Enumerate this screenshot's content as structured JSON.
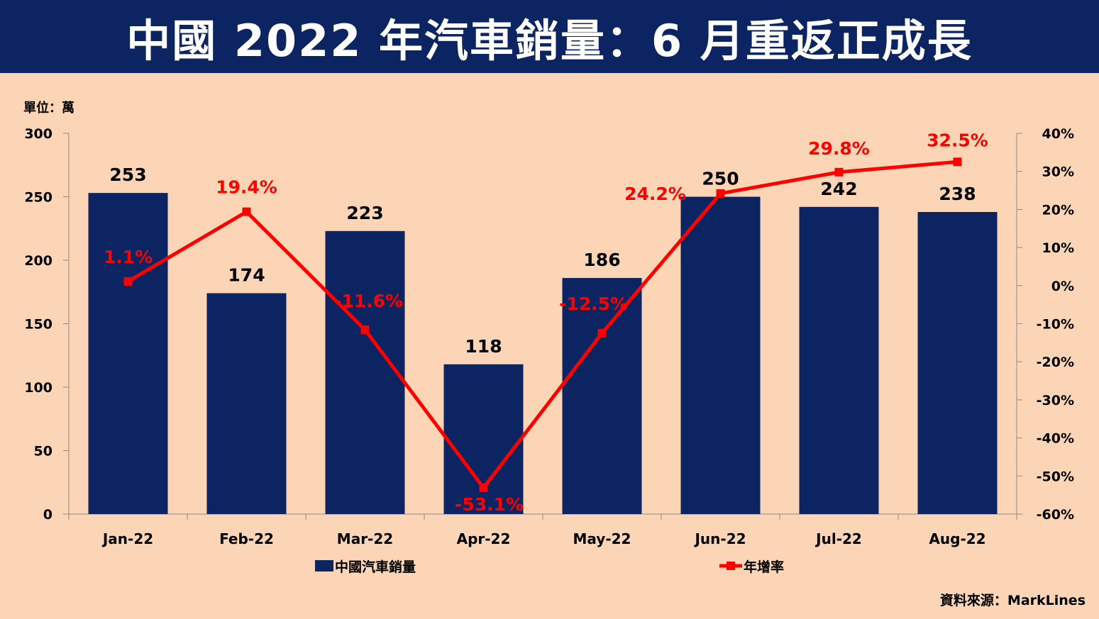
{
  "header": {
    "title": "中國 2022 年汽車銷量：6 月重返正成長"
  },
  "unit_label": "單位：萬",
  "source": "資料來源：MarkLines",
  "colors": {
    "header_bg": "#0c2461",
    "background": "#fbd5b5",
    "bar": "#0c2461",
    "line": "#ff0000"
  },
  "chart_data": {
    "type": "bar",
    "title": "中國 2022 年汽車銷量：6 月重返正成長",
    "categories": [
      "Jan-22",
      "Feb-22",
      "Mar-22",
      "Apr-22",
      "May-22",
      "Jun-22",
      "Jul-22",
      "Aug-22"
    ],
    "series": [
      {
        "name": "中國汽車銷量",
        "type": "bar",
        "axis": "left",
        "values": [
          253,
          174,
          223,
          118,
          186,
          250,
          242,
          238
        ],
        "labels": [
          "253",
          "174",
          "223",
          "118",
          "186",
          "250",
          "242",
          "238"
        ]
      },
      {
        "name": "年增率",
        "type": "line",
        "axis": "right",
        "marker": "square",
        "values": [
          1.1,
          19.4,
          -11.6,
          -53.1,
          -12.5,
          24.2,
          29.8,
          32.5
        ],
        "labels": [
          "1.1%",
          "19.4%",
          "-11.6%",
          "-53.1%",
          "-12.5%",
          "24.2%",
          "29.8%",
          "32.5%"
        ]
      }
    ],
    "y_left": {
      "ylim": [
        0,
        300
      ],
      "ticks": [
        "0",
        "50",
        "100",
        "150",
        "200",
        "250",
        "300"
      ]
    },
    "y_right": {
      "ylim": [
        -60,
        40
      ],
      "ticks": [
        "-60%",
        "-50%",
        "-40%",
        "-30%",
        "-20%",
        "-10%",
        "0%",
        "10%",
        "20%",
        "30%",
        "40%"
      ]
    },
    "legend": {
      "position": "bottom"
    },
    "grid": false
  }
}
